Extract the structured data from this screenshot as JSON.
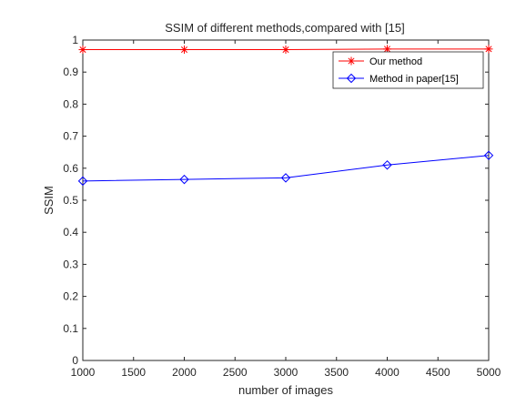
{
  "chart_data": {
    "type": "line",
    "title": "SSIM of different methods,compared with [15]",
    "xlabel": "number of images",
    "ylabel": "SSIM",
    "xlim": [
      1000,
      5000
    ],
    "ylim": [
      0,
      1
    ],
    "x_ticks": [
      1000,
      1500,
      2000,
      2500,
      3000,
      3500,
      4000,
      4500,
      5000
    ],
    "y_ticks": [
      0,
      0.1,
      0.2,
      0.3,
      0.4,
      0.5,
      0.6,
      0.7,
      0.8,
      0.9,
      1
    ],
    "x_tick_labels": [
      "1000",
      "1500",
      "2000",
      "2500",
      "3000",
      "3500",
      "4000",
      "4500",
      "5000"
    ],
    "y_tick_labels": [
      "0",
      "0.1",
      "0.2",
      "0.3",
      "0.4",
      "0.5",
      "0.6",
      "0.7",
      "0.8",
      "0.9",
      "1"
    ],
    "x": [
      1000,
      2000,
      3000,
      4000,
      5000
    ],
    "grid": false,
    "legend_position": "top-right",
    "series": [
      {
        "name": "Our method",
        "values": [
          0.97,
          0.97,
          0.97,
          0.972,
          0.972
        ],
        "color": "#ff0000",
        "marker": "asterisk"
      },
      {
        "name": "Method in paper[15]",
        "values": [
          0.56,
          0.565,
          0.57,
          0.61,
          0.64
        ],
        "color": "#0000ff",
        "marker": "diamond"
      }
    ]
  }
}
